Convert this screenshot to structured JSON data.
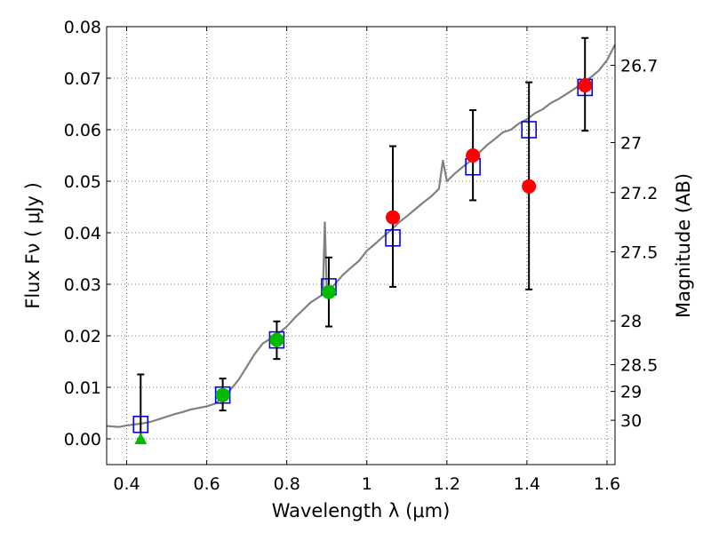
{
  "chart_data": {
    "type": "scatter",
    "title": "",
    "xlabel": "Wavelength  λ (μm)",
    "ylabel": "Flux  Fν  ( μJy )",
    "y2label": "Magnitude (AB)",
    "xlim": [
      0.35,
      1.62
    ],
    "ylim": [
      -0.005,
      0.08
    ],
    "grid": true,
    "x_ticks": [
      0.4,
      0.6,
      0.8,
      1.0,
      1.2,
      1.4,
      1.6
    ],
    "x_tick_labels": [
      "0.4",
      "0.6",
      "0.8",
      "1",
      "1.2",
      "1.4",
      "1.6"
    ],
    "y_ticks": [
      0.0,
      0.01,
      0.02,
      0.03,
      0.04,
      0.05,
      0.06,
      0.07,
      0.08
    ],
    "y_tick_labels": [
      "0.00",
      "0.01",
      "0.02",
      "0.03",
      "0.04",
      "0.05",
      "0.06",
      "0.07",
      "0.08"
    ],
    "y2_ticks": [
      {
        "flux": 0.0725,
        "label": "26.7"
      },
      {
        "flux": 0.0575,
        "label": "27"
      },
      {
        "flux": 0.0478,
        "label": "27.2"
      },
      {
        "flux": 0.0363,
        "label": "27.5"
      },
      {
        "flux": 0.0229,
        "label": "28"
      },
      {
        "flux": 0.0144,
        "label": "28.5"
      },
      {
        "flux": 0.0092,
        "label": "29"
      },
      {
        "flux": 0.0036,
        "label": "30"
      }
    ],
    "series": [
      {
        "kind": "line",
        "color": "#808080",
        "x": [
          0.35,
          0.38,
          0.4,
          0.42,
          0.44,
          0.46,
          0.48,
          0.5,
          0.52,
          0.54,
          0.56,
          0.58,
          0.6,
          0.62,
          0.64,
          0.66,
          0.68,
          0.7,
          0.72,
          0.74,
          0.76,
          0.78,
          0.8,
          0.82,
          0.84,
          0.86,
          0.88,
          0.89,
          0.895,
          0.9,
          0.92,
          0.94,
          0.96,
          0.98,
          1.0,
          1.02,
          1.04,
          1.06,
          1.08,
          1.1,
          1.12,
          1.14,
          1.16,
          1.18,
          1.19,
          1.2,
          1.22,
          1.24,
          1.26,
          1.28,
          1.3,
          1.32,
          1.34,
          1.36,
          1.38,
          1.4,
          1.42,
          1.44,
          1.46,
          1.48,
          1.5,
          1.52,
          1.54,
          1.56,
          1.58,
          1.6,
          1.62
        ],
        "y": [
          0.0025,
          0.0023,
          0.0026,
          0.0028,
          0.003,
          0.0033,
          0.0038,
          0.0043,
          0.0048,
          0.0052,
          0.0057,
          0.006,
          0.0063,
          0.0068,
          0.008,
          0.0096,
          0.0115,
          0.014,
          0.0165,
          0.0185,
          0.0195,
          0.0205,
          0.0218,
          0.0235,
          0.025,
          0.0265,
          0.0275,
          0.028,
          0.042,
          0.0285,
          0.03,
          0.0318,
          0.0332,
          0.0345,
          0.0365,
          0.0378,
          0.0392,
          0.0405,
          0.042,
          0.0432,
          0.0445,
          0.0458,
          0.047,
          0.0485,
          0.054,
          0.05,
          0.0515,
          0.0528,
          0.054,
          0.0555,
          0.057,
          0.0582,
          0.0595,
          0.06,
          0.0612,
          0.062,
          0.0632,
          0.064,
          0.0652,
          0.066,
          0.067,
          0.068,
          0.0692,
          0.0702,
          0.0715,
          0.0735,
          0.0765
        ]
      },
      {
        "kind": "open-square",
        "color": "#0000ee",
        "x": [
          0.435,
          0.64,
          0.775,
          0.905,
          1.065,
          1.265,
          1.405,
          1.545
        ],
        "y": [
          0.0028,
          0.0085,
          0.0192,
          0.0295,
          0.039,
          0.0528,
          0.06,
          0.0682
        ]
      },
      {
        "kind": "errorbar",
        "color": "#000000",
        "x": [
          0.435,
          0.64,
          0.775,
          0.905,
          1.065,
          1.265,
          1.405,
          1.545
        ],
        "ylow": [
          0.0,
          0.0055,
          0.0155,
          0.0218,
          0.0295,
          0.0463,
          0.029,
          0.0598
        ],
        "yhigh": [
          0.0125,
          0.0117,
          0.0228,
          0.0352,
          0.0568,
          0.0638,
          0.0692,
          0.0778
        ]
      },
      {
        "kind": "filled-circle",
        "color": "#00bb00",
        "x": [
          0.64,
          0.775,
          0.905
        ],
        "y": [
          0.0085,
          0.0192,
          0.0285
        ]
      },
      {
        "kind": "filled-circle",
        "color": "#ff0000",
        "x": [
          1.065,
          1.265,
          1.405,
          1.545
        ],
        "y": [
          0.043,
          0.055,
          0.049,
          0.0686
        ]
      },
      {
        "kind": "triangle",
        "color": "#00bb00",
        "x": [
          0.435
        ],
        "y": [
          0.0
        ]
      }
    ]
  }
}
